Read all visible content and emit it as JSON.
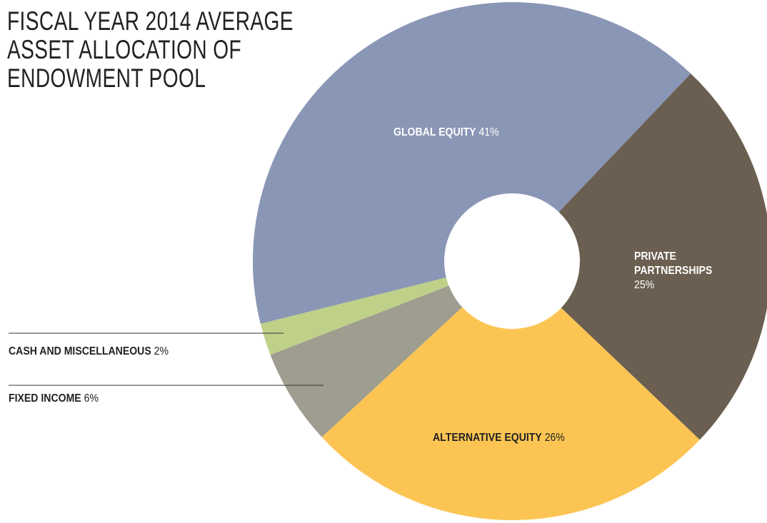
{
  "chart_data": {
    "type": "donut",
    "title": "FISCAL YEAR 2014 AVERAGE ASSET ALLOCATION OF ENDOWMENT POOL",
    "categories": [
      "GLOBAL EQUITY",
      "PRIVATE PARTNERSHIPS",
      "ALTERNATIVE EQUITY",
      "FIXED INCOME",
      "CASH AND MISCELLANEOUS"
    ],
    "values": [
      41,
      25,
      26,
      6,
      2
    ],
    "value_labels": [
      "41%",
      "25%",
      "26%",
      "6%",
      "2%"
    ],
    "colors": [
      "#8a96b5",
      "#6a5f50",
      "#fcc553",
      "#9e9d90",
      "#bfd088"
    ]
  }
}
